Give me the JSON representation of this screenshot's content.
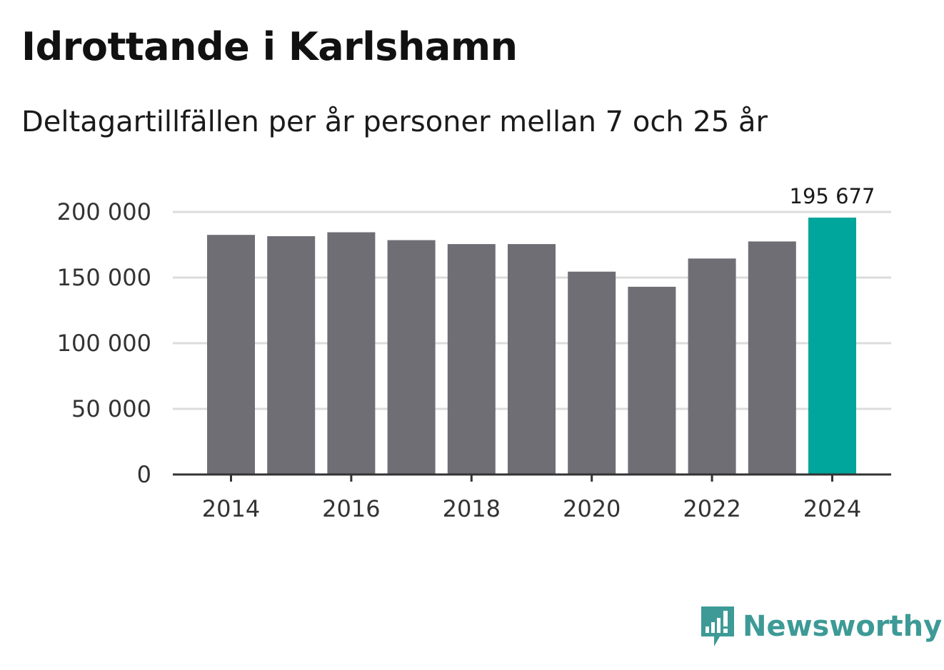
{
  "header": {
    "title": "Idrottande i Karlshamn",
    "subtitle": "Deltagartillfällen per år personer mellan 7 och 25 år"
  },
  "brand": {
    "name": "Newsworthy",
    "icon": "newsworthy-logo-icon",
    "color": "#3d9a96"
  },
  "chart_data": {
    "type": "bar",
    "title": "Idrottande i Karlshamn",
    "subtitle": "Deltagartillfällen per år personer mellan 7 och 25 år",
    "xlabel": "",
    "ylabel": "",
    "categories": [
      "2014",
      "2015",
      "2016",
      "2017",
      "2018",
      "2019",
      "2020",
      "2021",
      "2022",
      "2023",
      "2024"
    ],
    "values": [
      182500,
      181500,
      184500,
      178500,
      175500,
      175500,
      154500,
      143000,
      164500,
      177500,
      195677
    ],
    "highlight_index": 10,
    "colors": {
      "bar": "#6f6e74",
      "highlight": "#00a59b",
      "grid": "#dcdcdc",
      "axis": "#333333"
    },
    "ylim": [
      0,
      200000
    ],
    "yticks": [
      0,
      50000,
      100000,
      150000,
      200000
    ],
    "ytick_labels": [
      "0",
      "50 000",
      "100 000",
      "150 000",
      "200 000"
    ],
    "xtick_labels": [
      "2014",
      "2016",
      "2018",
      "2020",
      "2022",
      "2024"
    ],
    "xtick_years": [
      2014,
      2016,
      2018,
      2020,
      2022,
      2024
    ],
    "data_labels": [
      {
        "category": "2024",
        "text": "195 677"
      }
    ],
    "grid": true,
    "legend": "none"
  }
}
